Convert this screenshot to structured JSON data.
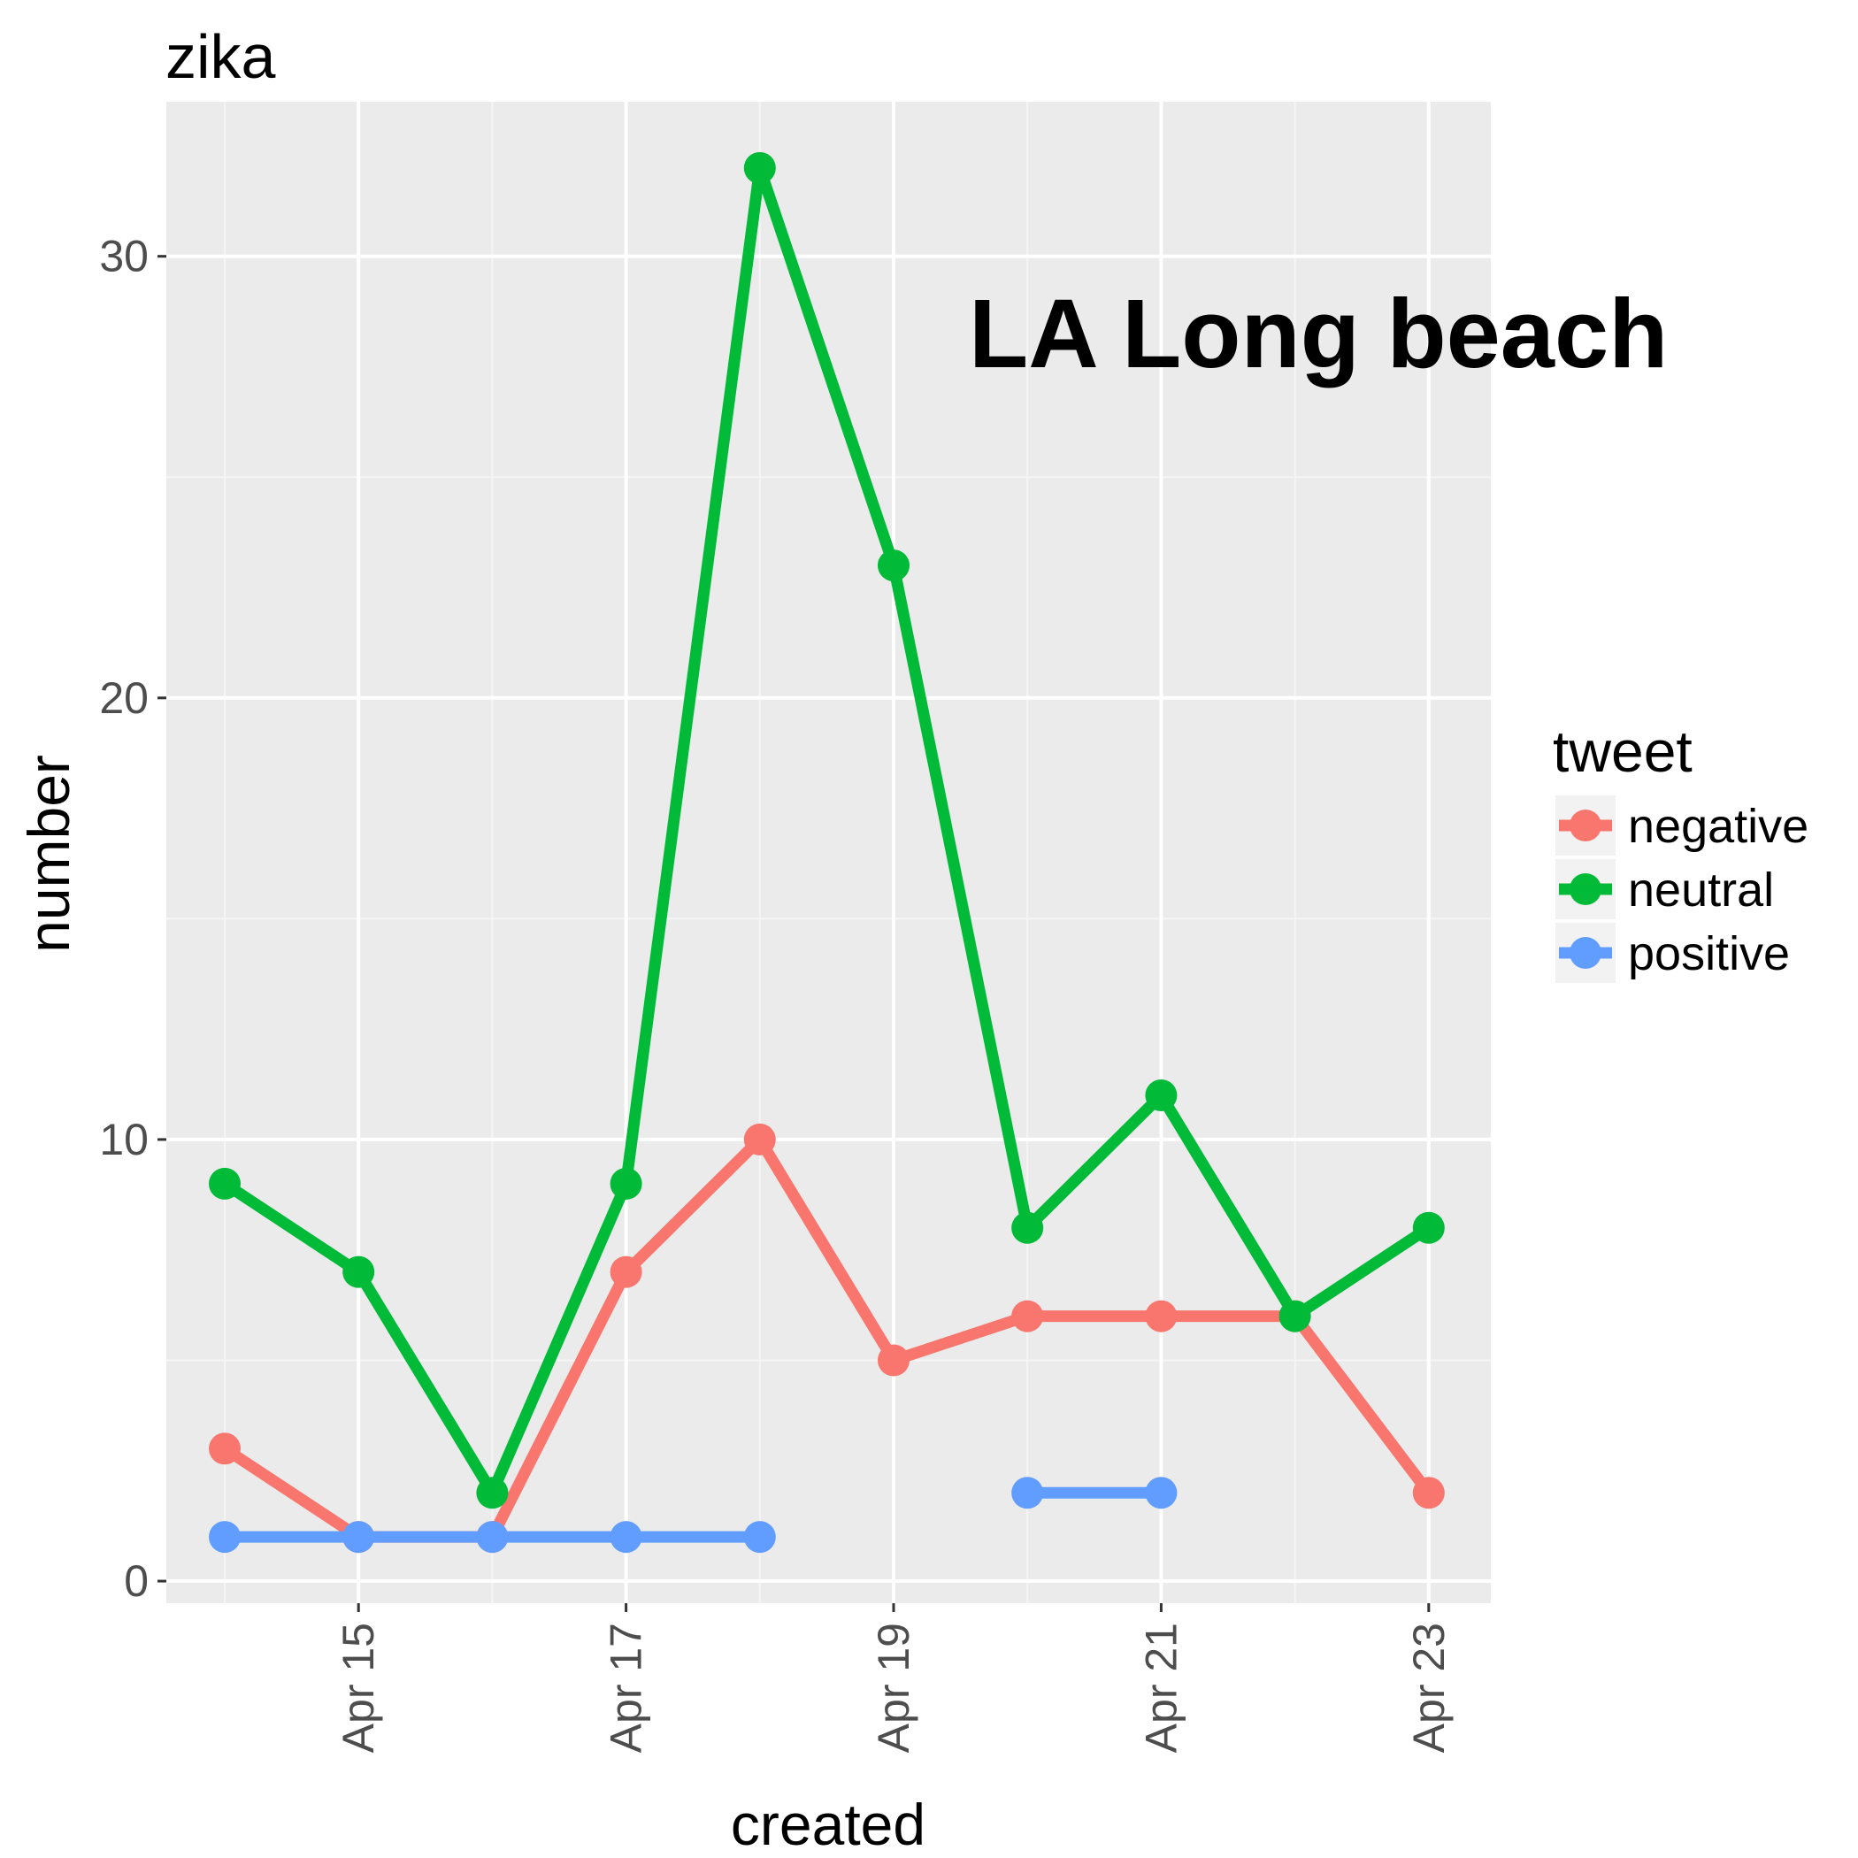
{
  "chart_data": {
    "type": "line",
    "title": "zika",
    "annotation": "LA Long beach",
    "xlabel": "created",
    "ylabel": "number",
    "x": [
      "Apr 14",
      "Apr 15",
      "Apr 16",
      "Apr 17",
      "Apr 18",
      "Apr 19",
      "Apr 20",
      "Apr 21",
      "Apr 22",
      "Apr 23"
    ],
    "x_ticks": [
      "Apr 15",
      "Apr 17",
      "Apr 19",
      "Apr 21",
      "Apr 23"
    ],
    "y_ticks": [
      0,
      10,
      20,
      30
    ],
    "ylim": [
      -0.5,
      33.5
    ],
    "grid": true,
    "legend": {
      "title": "tweet",
      "position": "right"
    },
    "series": [
      {
        "name": "negative",
        "color": "#F8766D",
        "values": [
          3,
          1,
          1,
          7,
          10,
          5,
          6,
          6,
          6,
          2
        ]
      },
      {
        "name": "neutral",
        "color": "#00BA38",
        "values": [
          9,
          7,
          2,
          9,
          32,
          23,
          8,
          11,
          6,
          8
        ]
      },
      {
        "name": "positive",
        "color": "#619CFF",
        "values": [
          1,
          1,
          1,
          1,
          1,
          null,
          2,
          2,
          null,
          null
        ]
      }
    ]
  }
}
